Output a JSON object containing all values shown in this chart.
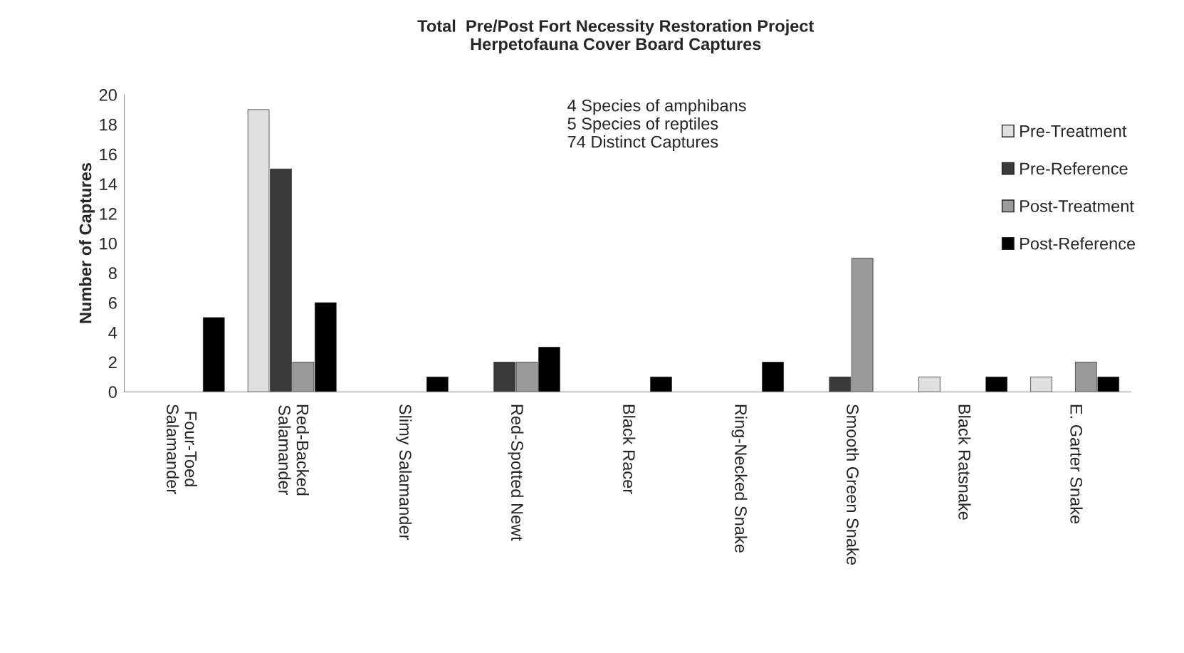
{
  "chart_data": {
    "type": "bar",
    "title": "Total  Pre/Post Fort Necessity Restoration Project\nHerpetofauna Cover Board Captures",
    "ylabel": "Number of Captures",
    "categories": [
      "Four-Toed\nSalamander",
      "Red-Backed\nSalamander",
      "Slimy Salamander",
      "Red-Spotted Newt",
      "Black Racer",
      "Ring-Necked Snake",
      "Smooth Green Snake",
      "Black Ratsnake",
      "E. Garter Snake"
    ],
    "series": [
      {
        "name": "Pre-Treatment",
        "color": "#e0e0e0",
        "values": [
          0,
          19,
          0,
          0,
          0,
          0,
          0,
          1,
          1
        ]
      },
      {
        "name": "Pre-Reference",
        "color": "#3a3a3a",
        "values": [
          0,
          15,
          0,
          2,
          0,
          0,
          1,
          0,
          0
        ]
      },
      {
        "name": "Post-Treatment",
        "color": "#9a9a9a",
        "values": [
          0,
          2,
          0,
          2,
          0,
          0,
          9,
          0,
          2
        ]
      },
      {
        "name": "Post-Reference",
        "color": "#000000",
        "values": [
          5,
          6,
          1,
          3,
          1,
          2,
          0,
          1,
          1
        ]
      }
    ],
    "ylim": [
      0,
      20
    ],
    "yticks": [
      0,
      2,
      4,
      6,
      8,
      10,
      12,
      14,
      16,
      18,
      20
    ],
    "annotations": [
      "4 Species of amphibans\n5 Species of reptiles\n74 Distinct Captures"
    ],
    "legend": "top right",
    "grid": false
  }
}
